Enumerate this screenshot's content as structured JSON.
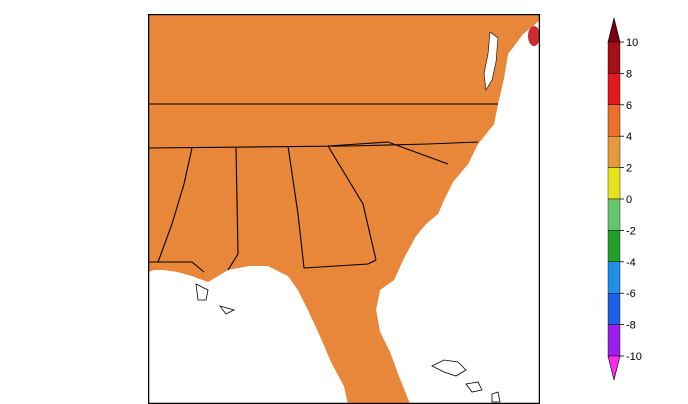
{
  "map": {
    "description_free": true,
    "colors": {
      "ocean": "#ffffff",
      "border": "#000000",
      "county_line": "#3a2a10"
    }
  },
  "legend": {
    "type": "colorbar",
    "ticks": [
      "10",
      "8",
      "6",
      "4",
      "2",
      "0",
      "-2",
      "-4",
      "-6",
      "-8",
      "-10"
    ],
    "bins": [
      {
        "from": 8,
        "to": 10,
        "color": "#a50f15"
      },
      {
        "from": 6,
        "to": 8,
        "color": "#e31a1c"
      },
      {
        "from": 4,
        "to": 6,
        "color": "#e8702a"
      },
      {
        "from": 2,
        "to": 4,
        "color": "#e79a3b"
      },
      {
        "from": 0,
        "to": 2,
        "color": "#e3e41c"
      },
      {
        "from": -2,
        "to": 0,
        "color": "#66c36e"
      },
      {
        "from": -4,
        "to": -2,
        "color": "#22a02c"
      },
      {
        "from": -6,
        "to": -4,
        "color": "#1f8fe8"
      },
      {
        "from": -8,
        "to": -6,
        "color": "#1f5fe8"
      },
      {
        "from": -10,
        "to": -8,
        "color": "#9a1fe8"
      }
    ],
    "arrow_top_color": "#7a0010",
    "arrow_bottom_color": "#ff28ee"
  }
}
